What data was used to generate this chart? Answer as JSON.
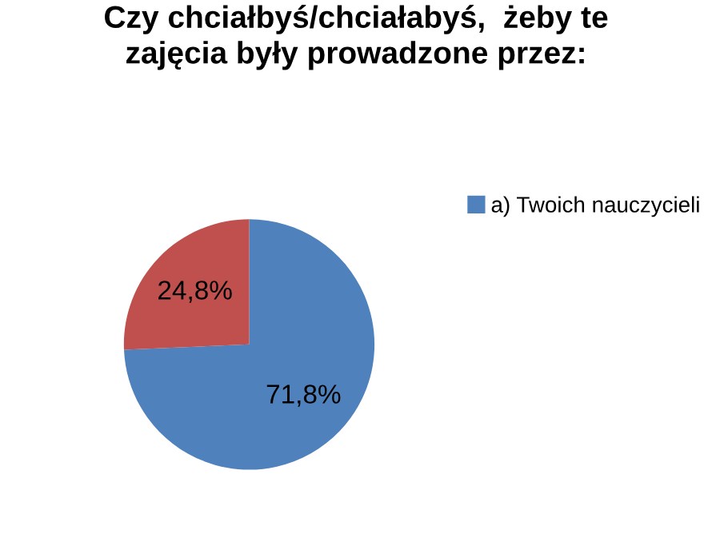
{
  "chart_data": {
    "type": "pie",
    "title": "Czy chciałbyś/chciałabyś,  żeby te\nzajęcia były prowadzone przez:",
    "categories": [
      "a) Twoich nauczycieli",
      null
    ],
    "values": [
      71.8,
      24.8
    ],
    "colors": [
      "#4f81bd",
      "#c0504d"
    ],
    "value_labels": [
      "71,8%",
      "24,8%"
    ],
    "legend": "right"
  }
}
